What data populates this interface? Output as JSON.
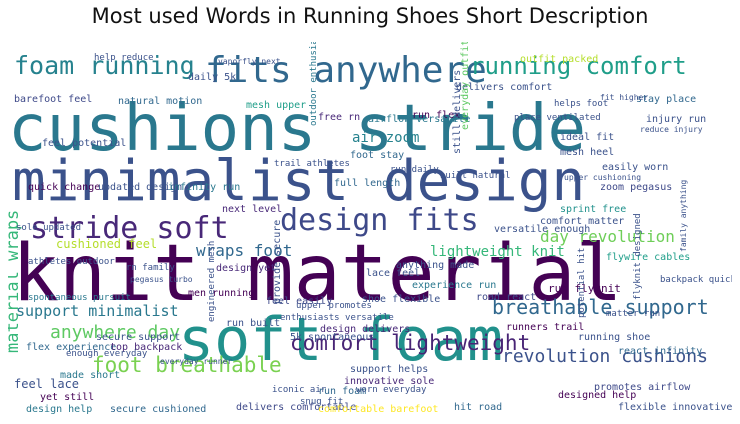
{
  "title": "Most used Words in Running Shoes Short Description",
  "wordcloud": {
    "words": [
      {
        "text": "knit material",
        "color": "#440154"
      },
      {
        "text": "cushions stride",
        "color": "#2a788e"
      },
      {
        "text": "minimalist design",
        "color": "#3b528b"
      },
      {
        "text": "soft foam",
        "color": "#21918c"
      },
      {
        "text": "fits anywhere",
        "color": "#31688e"
      },
      {
        "text": "stride soft",
        "color": "#482878"
      },
      {
        "text": "design fits",
        "color": "#3e4989"
      },
      {
        "text": "foam running",
        "color": "#26828e"
      },
      {
        "text": "running comfort",
        "color": "#1f9e89"
      },
      {
        "text": "comfort lightweight",
        "color": "#482475"
      },
      {
        "text": "breathable support",
        "color": "#31688e"
      },
      {
        "text": "foot breathable",
        "color": "#7ad151"
      },
      {
        "text": "support minimalist",
        "color": "#2a788e"
      },
      {
        "text": "anywhere day",
        "color": "#5ec962"
      },
      {
        "text": "material wraps",
        "color": "#35b779"
      },
      {
        "text": "wraps foot",
        "color": "#31688e"
      },
      {
        "text": "lightweight knit",
        "color": "#35b779"
      },
      {
        "text": "revolution cushions",
        "color": "#3b528b"
      },
      {
        "text": "day revolution",
        "color": "#6ece58"
      },
      {
        "text": "air zoom",
        "color": "#26828e"
      },
      {
        "text": "cushioned feel",
        "color": "#b5de2b"
      },
      {
        "text": "barefoot feel",
        "color": "#3e4989"
      },
      {
        "text": "natural motion",
        "color": "#31688e"
      },
      {
        "text": "mesh upper",
        "color": "#1f9e89"
      },
      {
        "text": "run flex",
        "color": "#440154"
      },
      {
        "text": "free rn",
        "color": "#482878"
      },
      {
        "text": "airflow versatile",
        "color": "#2a788e"
      },
      {
        "text": "foot stay",
        "color": "#31688e"
      },
      {
        "text": "mesh heel",
        "color": "#3b528b"
      },
      {
        "text": "run flyknit",
        "color": "#440154"
      },
      {
        "text": "feel potential",
        "color": "#3b528b"
      },
      {
        "text": "quick change",
        "color": "#440154"
      },
      {
        "text": "updated design",
        "color": "#3b528b"
      },
      {
        "text": "infinity run",
        "color": "#2a788e"
      },
      {
        "text": "full length",
        "color": "#31688e"
      },
      {
        "text": "zoom pegasus",
        "color": "#3e4989"
      },
      {
        "text": "sprint free",
        "color": "#21918c"
      },
      {
        "text": "next level",
        "color": "#482878"
      },
      {
        "text": "comfort matter",
        "color": "#3b528b"
      },
      {
        "text": "flywire cables",
        "color": "#1f9e89"
      },
      {
        "text": "design yet",
        "color": "#482878"
      },
      {
        "text": "lace feel",
        "color": "#3b528b"
      },
      {
        "text": "men running",
        "color": "#440154"
      },
      {
        "text": "feel easily",
        "color": "#3e4989"
      },
      {
        "text": "run built",
        "color": "#3b528b"
      },
      {
        "text": "design delivers",
        "color": "#482878"
      },
      {
        "text": "5k spontaneous",
        "color": "#3b528b"
      },
      {
        "text": "secure support",
        "color": "#3b528b"
      },
      {
        "text": "flex experience",
        "color": "#31688e"
      },
      {
        "text": "top backpack",
        "color": "#482878"
      },
      {
        "text": "made short",
        "color": "#2a788e"
      },
      {
        "text": "feel lace",
        "color": "#3b528b"
      },
      {
        "text": "yet still",
        "color": "#440154"
      },
      {
        "text": "design help",
        "color": "#2a788e"
      },
      {
        "text": "secure cushioned",
        "color": "#31688e"
      },
      {
        "text": "delivers comfortable",
        "color": "#3e4989"
      },
      {
        "text": "comfortable barefoot",
        "color": "#fde725"
      },
      {
        "text": "run foam",
        "color": "#31688e"
      },
      {
        "text": "support helps",
        "color": "#3b528b"
      },
      {
        "text": "innovative sole",
        "color": "#482878"
      },
      {
        "text": "designed help",
        "color": "#440154"
      },
      {
        "text": "hit road",
        "color": "#31688e"
      },
      {
        "text": "flexible innovative",
        "color": "#3b528b"
      },
      {
        "text": "promotes airflow",
        "color": "#3e4989"
      },
      {
        "text": "react infinity",
        "color": "#31688e"
      },
      {
        "text": "running shoe",
        "color": "#3b528b"
      },
      {
        "text": "runners trail",
        "color": "#440154"
      },
      {
        "text": "road react",
        "color": "#3e4989"
      },
      {
        "text": "enough everyday",
        "color": "#3b528b"
      },
      {
        "text": "spontaneous pursuit",
        "color": "#2a788e"
      },
      {
        "text": "athletes outdoor",
        "color": "#3b528b"
      },
      {
        "text": "sole updated",
        "color": "#3b528b"
      },
      {
        "text": "outfit packed",
        "color": "#b5de2b"
      },
      {
        "text": "delivers comfort",
        "color": "#3b528b"
      },
      {
        "text": "helps foot",
        "color": "#3b528b"
      },
      {
        "text": "place ventilated",
        "color": "#3b528b"
      },
      {
        "text": "stay place",
        "color": "#31688e"
      },
      {
        "text": "injury run",
        "color": "#3b528b"
      },
      {
        "text": "ideal fit",
        "color": "#3b528b"
      },
      {
        "text": "easily worn",
        "color": "#3b528b"
      },
      {
        "text": "trail athletes",
        "color": "#3b528b"
      },
      {
        "text": "outdoor enthusiasts",
        "color": "#2a788e"
      },
      {
        "text": "daily 5k",
        "color": "#3b528b"
      },
      {
        "text": "still delivers",
        "color": "#3b528b"
      },
      {
        "text": "everyday outfit",
        "color": "#5ec962"
      },
      {
        "text": "versatile enough",
        "color": "#3b528b"
      },
      {
        "text": "provide secure",
        "color": "#3b528b"
      },
      {
        "text": "engineered mesh",
        "color": "#3b528b"
      },
      {
        "text": "shoe flexible",
        "color": "#3b528b"
      },
      {
        "text": "anything made",
        "color": "#3b528b"
      },
      {
        "text": "experience run",
        "color": "#2a788e"
      },
      {
        "text": "upper promotes",
        "color": "#3b528b"
      },
      {
        "text": "enthusiasts versatile",
        "color": "#3b528b"
      },
      {
        "text": "backpack quick",
        "color": "#3b528b"
      },
      {
        "text": "potential hit",
        "color": "#3b528b"
      },
      {
        "text": "flyknit designed",
        "color": "#3b528b"
      },
      {
        "text": "matter run",
        "color": "#3b528b"
      },
      {
        "text": "fit higher",
        "color": "#3b528b"
      },
      {
        "text": "run daily",
        "color": "#3b528b"
      },
      {
        "text": "built natural",
        "color": "#3b528b"
      },
      {
        "text": "vaporfly next",
        "color": "#3b528b"
      },
      {
        "text": "help reduce",
        "color": "#3b528b"
      },
      {
        "text": "rn family",
        "color": "#3b528b"
      },
      {
        "text": "worn everyday",
        "color": "#3b528b"
      },
      {
        "text": "iconic air",
        "color": "#3b528b"
      },
      {
        "text": "snug fit",
        "color": "#3b528b"
      },
      {
        "text": "family anything",
        "color": "#3b528b"
      },
      {
        "text": "upper cushioning",
        "color": "#3b528b"
      },
      {
        "text": "pegasus turbo",
        "color": "#3b528b"
      },
      {
        "text": "everyday runner",
        "color": "#3b528b"
      },
      {
        "text": "reduce injury",
        "color": "#3b528b"
      }
    ]
  }
}
